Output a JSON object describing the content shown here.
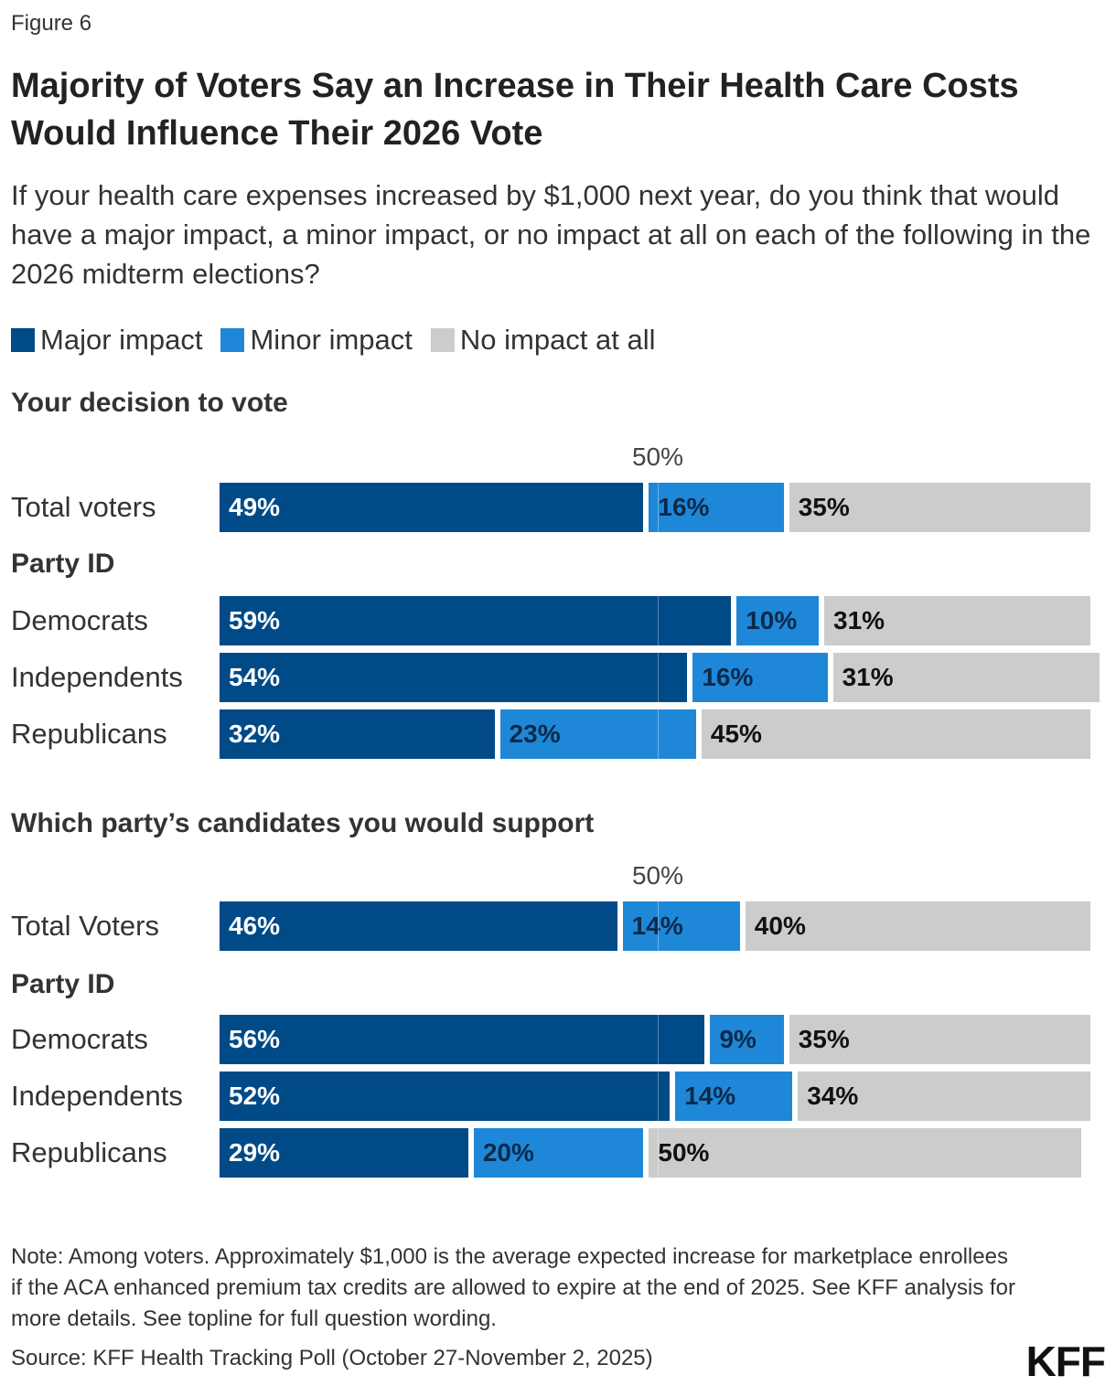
{
  "figure_label": "Figure 6",
  "title": "Majority of Voters Say an Increase in Their Health Care Costs Would Influence Their 2026 Vote",
  "subtitle": "If your health care expenses increased by $1,000 next year, do you think that would have a major impact, a minor impact, or no impact at all on each of the following in the 2026 midterm elections?",
  "legend": [
    {
      "label": "Major impact",
      "color": "#004a87"
    },
    {
      "label": "Minor impact",
      "color": "#1f87d7"
    },
    {
      "label": "No impact at all",
      "color": "#cccccc"
    }
  ],
  "chart_data": [
    {
      "type": "bar",
      "orientation": "horizontal",
      "stacked": true,
      "title": "Your decision to vote",
      "reference_label": "50%",
      "reference_value": 50,
      "series": [
        {
          "name": "Major impact",
          "color": "#004a87"
        },
        {
          "name": "Minor impact",
          "color": "#1f87d7"
        },
        {
          "name": "No impact at all",
          "color": "#cccccc"
        }
      ],
      "rows": [
        {
          "label": "Total voters",
          "values": [
            49,
            16,
            35
          ]
        },
        {
          "group": "Party ID"
        },
        {
          "label": "Democrats",
          "values": [
            59,
            10,
            31
          ]
        },
        {
          "label": "Independents",
          "values": [
            54,
            16,
            31
          ]
        },
        {
          "label": "Republicans",
          "values": [
            32,
            23,
            45
          ]
        }
      ]
    },
    {
      "type": "bar",
      "orientation": "horizontal",
      "stacked": true,
      "title": "Which party’s candidates you would support",
      "reference_label": "50%",
      "reference_value": 50,
      "series": [
        {
          "name": "Major impact",
          "color": "#004a87"
        },
        {
          "name": "Minor impact",
          "color": "#1f87d7"
        },
        {
          "name": "No impact at all",
          "color": "#cccccc"
        }
      ],
      "rows": [
        {
          "label": "Total Voters",
          "values": [
            46,
            14,
            40
          ]
        },
        {
          "group": "Party ID"
        },
        {
          "label": "Democrats",
          "values": [
            56,
            9,
            35
          ]
        },
        {
          "label": "Independents",
          "values": [
            52,
            14,
            34
          ]
        },
        {
          "label": "Republicans",
          "values": [
            29,
            20,
            50
          ]
        }
      ]
    }
  ],
  "note": "Note: Among voters. Approximately $1,000 is the average expected increase for marketplace enrollees if the ACA enhanced premium tax credits are allowed to expire at the end of 2025. See KFF analysis for more details. See topline for full question wording.",
  "source": "Source: KFF Health Tracking Poll (October 27-November 2, 2025)",
  "logo": "KFF"
}
